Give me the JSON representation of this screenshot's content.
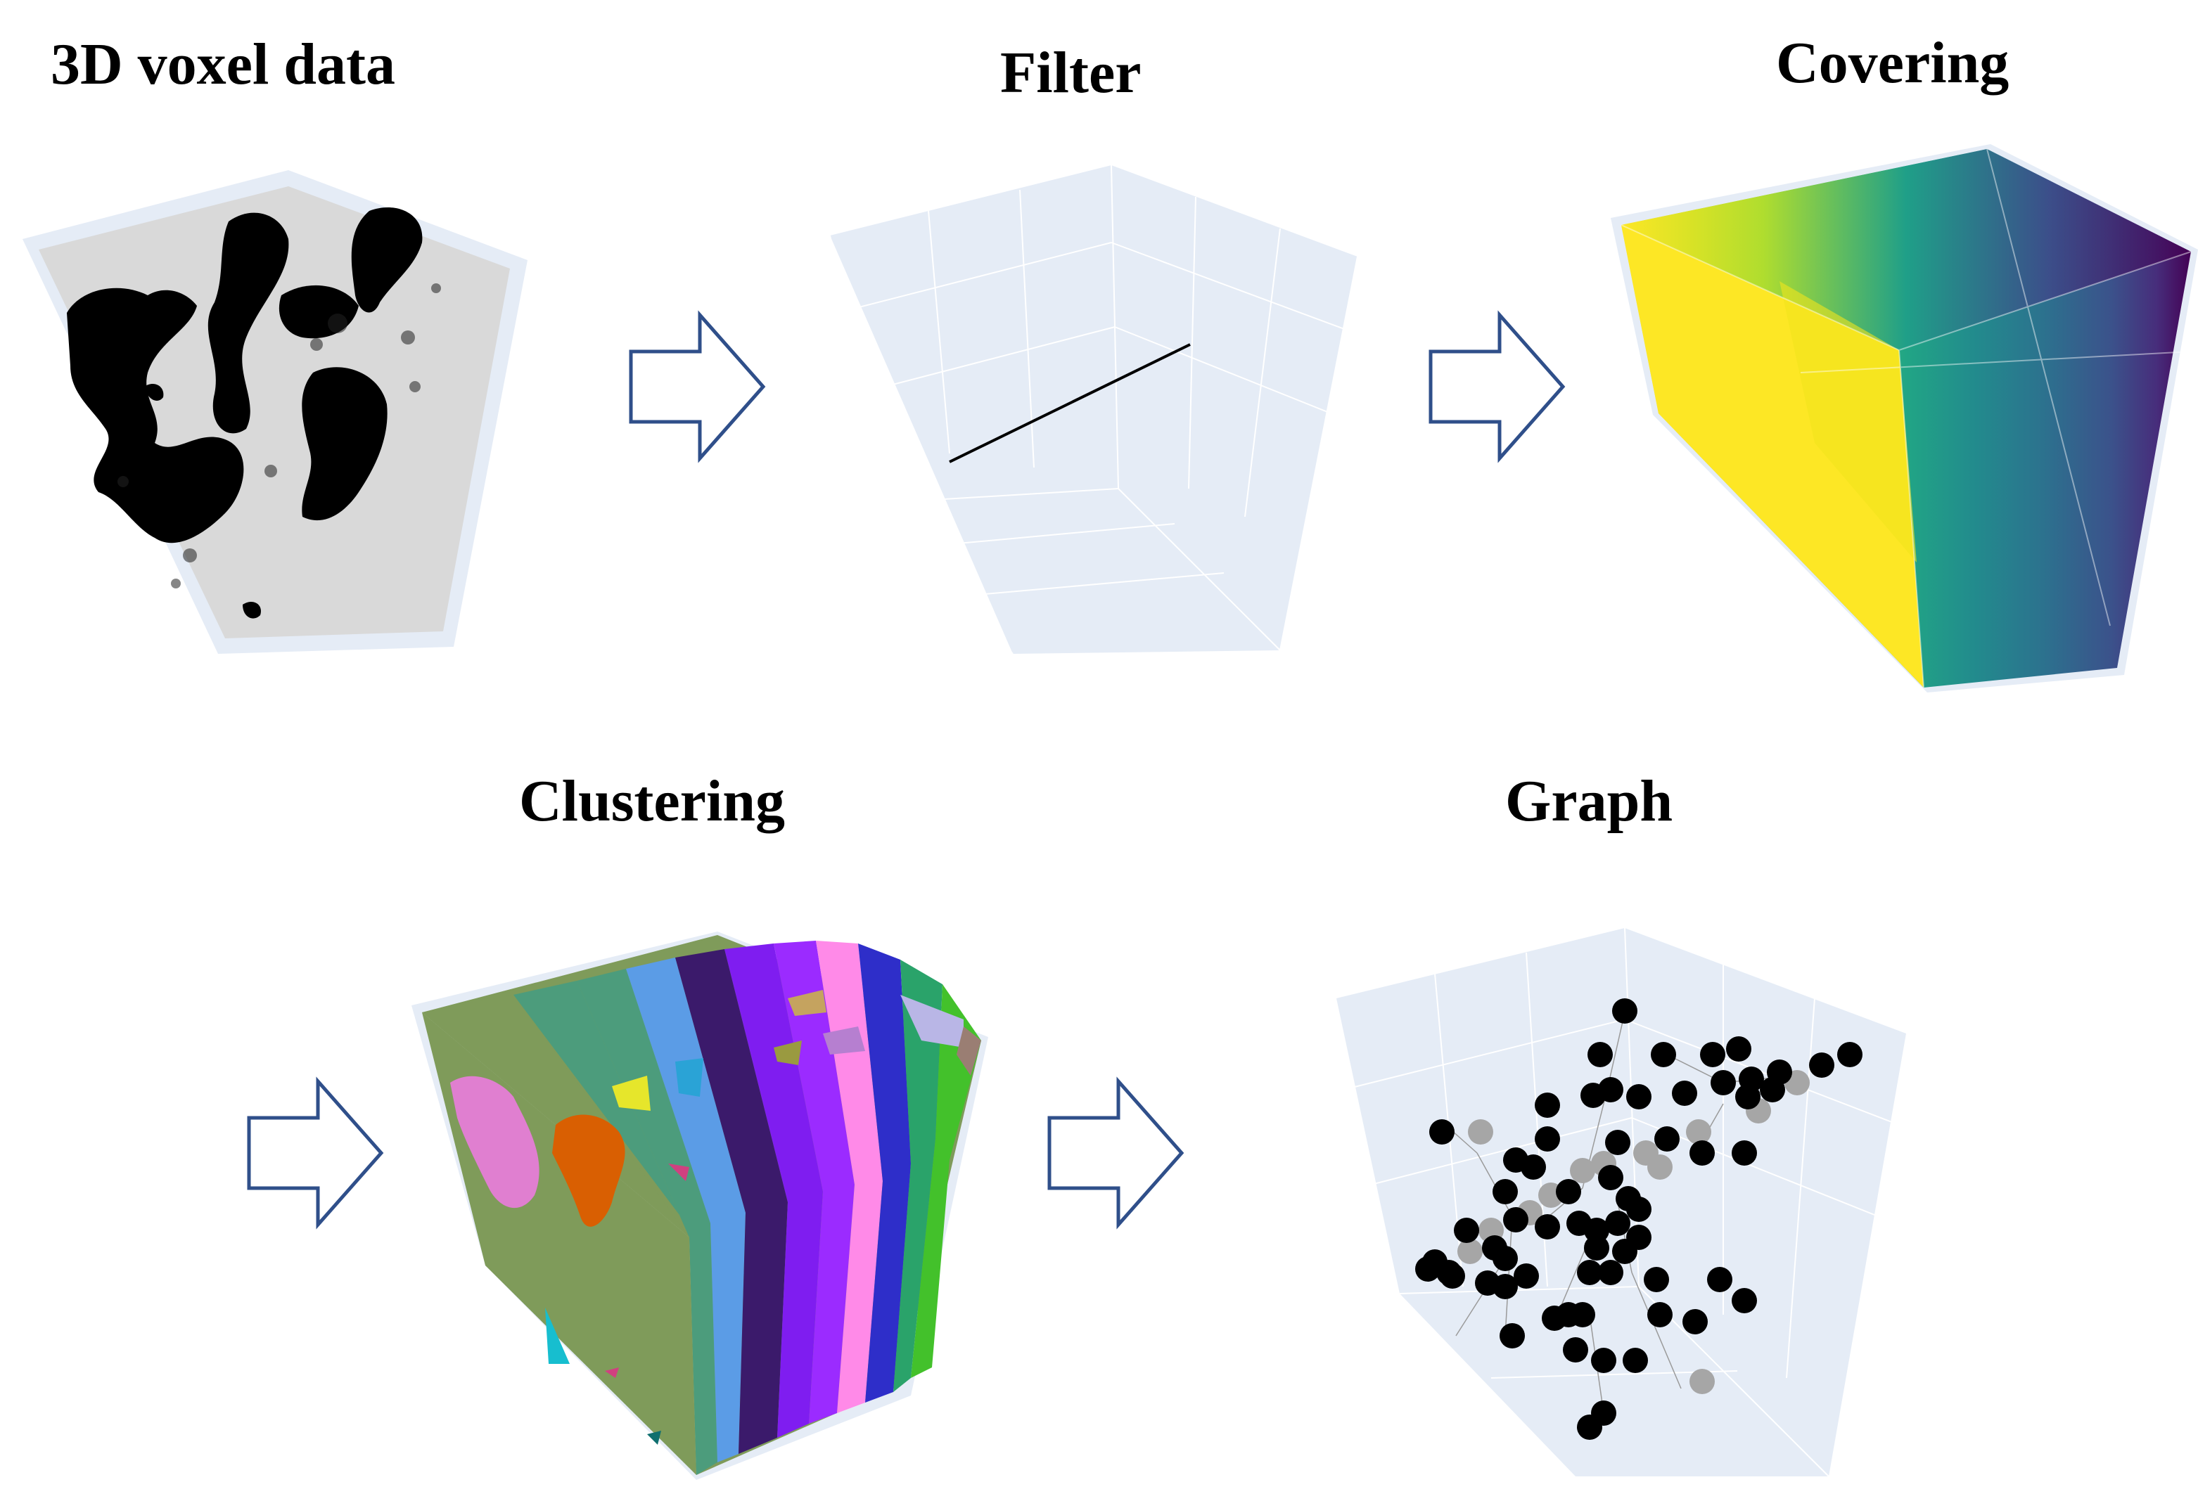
{
  "titles": {
    "voxel": "3D voxel data",
    "filter": "Filter",
    "covering": "Covering",
    "clustering": "Clustering",
    "graph": "Graph"
  },
  "colors": {
    "arrow_stroke": "#2f4f8a",
    "pane_bg": "#e5ecf6",
    "voxel_bg": "#d9d9d9",
    "voxel_fill": "#000000",
    "viridis": [
      "#fde725",
      "#b5de2b",
      "#6ece58",
      "#35b779",
      "#1f9e89",
      "#26828e",
      "#31688e",
      "#3e4989",
      "#482878",
      "#440154"
    ],
    "clusters": [
      "#7f9b5a",
      "#4c9c7c",
      "#5b9ce6",
      "#3b1a6b",
      "#7f1df0",
      "#9b2bff",
      "#ff8ae8",
      "#2e2ec9",
      "#2aa36a",
      "#43c12b"
    ],
    "graph_node": "#000000",
    "graph_node_light": "#a6a6a6"
  }
}
